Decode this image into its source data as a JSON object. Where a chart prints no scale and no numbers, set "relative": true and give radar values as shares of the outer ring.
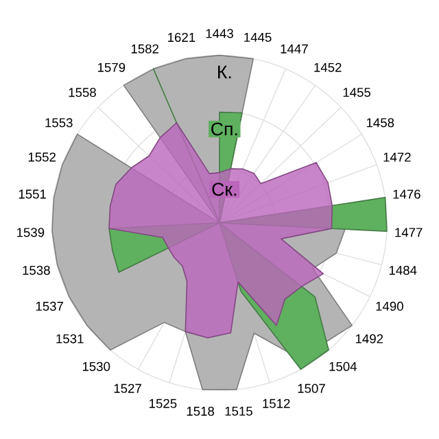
{
  "chart_data": {
    "type": "radar",
    "relative": true,
    "grid": true,
    "categories": [
      "1443",
      "1445",
      "1447",
      "1452",
      "1455",
      "1458",
      "1472",
      "1476",
      "1477",
      "1484",
      "1490",
      "1492",
      "1504",
      "1507",
      "1512",
      "1515",
      "1518",
      "1525",
      "1527",
      "1530",
      "1531",
      "1537",
      "1538",
      "1539",
      "1551",
      "1552",
      "1553",
      "1558",
      "1579",
      "1582",
      "1621"
    ],
    "series": [
      {
        "name": "К.",
        "color": "#b4b4b4",
        "values": [
          1.0,
          1.0,
          0,
          0,
          0,
          0,
          0,
          0.5,
          0.75,
          0.72,
          0.62,
          1.0,
          0.95,
          0.9,
          0.69,
          1.0,
          1.0,
          0.68,
          0.68,
          1.0,
          1.0,
          1.0,
          1.0,
          1.0,
          1.0,
          1.0,
          1.0,
          0,
          1.0,
          1.0,
          1.0
        ]
      },
      {
        "name": "Сп.",
        "color": "#5fb05f",
        "values": [
          0.66,
          0.67,
          null,
          null,
          null,
          null,
          null,
          1.0,
          1.0,
          null,
          null,
          0.72,
          1.0,
          1.0,
          0.43,
          null,
          null,
          null,
          null,
          null,
          null,
          0.67,
          0.66,
          0.66,
          null,
          null,
          null,
          null,
          0,
          1.0,
          0
        ]
      },
      {
        "name": "Ск.",
        "color": "#bb66bb",
        "values": [
          0.3,
          0.33,
          0.35,
          0.36,
          0.34,
          0.68,
          0.69,
          0.68,
          0.67,
          0.38,
          0.69,
          0.62,
          0.6,
          0.7,
          0.37,
          0.66,
          0.69,
          0.68,
          0.4,
          0.34,
          0.34,
          0.34,
          0.35,
          0.66,
          0.66,
          0.66,
          0.62,
          0.58,
          0.62,
          0.65,
          0.3
        ]
      }
    ]
  }
}
